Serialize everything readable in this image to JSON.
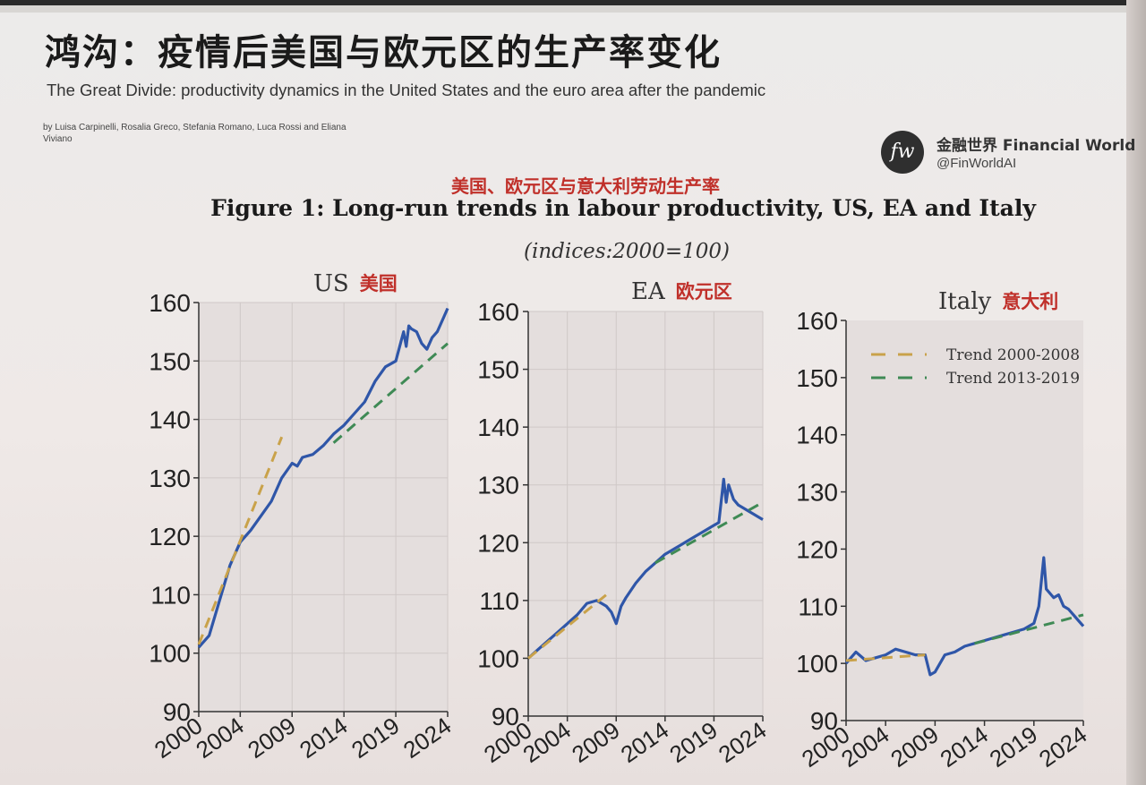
{
  "header": {
    "title_cn": "鸿沟：疫情后美国与欧元区的生产率变化",
    "title_en": "The Great Divide: productivity dynamics in the United States and the euro area after the pandemic",
    "authors": "by Luisa Carpinelli, Rosalia Greco, Stefania Romano, Luca Rossi and Eliana Viviano"
  },
  "brand": {
    "logo_text": "fw",
    "name": "金融世界 Financial World",
    "handle": "@FinWorldAI"
  },
  "figure": {
    "title_cn": "美国、欧元区与意大利劳动生产率",
    "title": "Figure 1: Long-run trends in labour productivity, US, EA and Italy",
    "subtitle": "(indices:2000=100)"
  },
  "colors": {
    "actual": "#2f56a8",
    "trend_2000_2008": "#c9a24a",
    "trend_2013_2019": "#3f8a55",
    "plot_bg": "#e4dedd",
    "title_red": "#c0302a"
  },
  "chart_data": [
    {
      "type": "line",
      "title": "US",
      "title_cn": "美国",
      "ylim": [
        90,
        160
      ],
      "xlim": [
        2000,
        2024
      ],
      "yticks": [
        90,
        100,
        110,
        120,
        130,
        140,
        150,
        160
      ],
      "xticks": [
        "2000",
        "2004",
        "2009",
        "2014",
        "2019",
        "2024"
      ],
      "grid": true,
      "series": [
        {
          "role": "actual",
          "x": [
            2000,
            2001,
            2002,
            2003,
            2004,
            2005,
            2006,
            2007,
            2008,
            2009,
            2009.5,
            2010,
            2011,
            2012,
            2013,
            2014,
            2015,
            2016,
            2017,
            2018,
            2019,
            2019.75,
            2020,
            2020.25,
            2020.5,
            2021,
            2021.5,
            2022,
            2022.5,
            2023,
            2023.5,
            2024
          ],
          "values": [
            101,
            103,
            109,
            115,
            119,
            121,
            123.5,
            126,
            130,
            132.5,
            132,
            133.5,
            134,
            135.5,
            137.5,
            139,
            141,
            143,
            146.5,
            149,
            150,
            155,
            152.5,
            156,
            155.5,
            155,
            153,
            152,
            154,
            155,
            157,
            159
          ]
        },
        {
          "name": "Trend 2000-2008",
          "x": [
            2000,
            2008
          ],
          "values": [
            101.5,
            137
          ]
        },
        {
          "name": "Trend 2013-2019",
          "x": [
            2013,
            2024
          ],
          "values": [
            136,
            153
          ]
        }
      ]
    },
    {
      "type": "line",
      "title": "EA",
      "title_cn": "欧元区",
      "ylim": [
        90,
        160
      ],
      "xlim": [
        2000,
        2024
      ],
      "yticks": [
        90,
        100,
        110,
        120,
        130,
        140,
        150,
        160
      ],
      "xticks": [
        "2000",
        "2004",
        "2009",
        "2014",
        "2019",
        "2024"
      ],
      "grid": true,
      "series": [
        {
          "role": "actual",
          "x": [
            2000,
            2001,
            2002,
            2003,
            2004,
            2005,
            2006,
            2007,
            2008,
            2008.5,
            2009,
            2009.5,
            2010,
            2011,
            2012,
            2013,
            2014,
            2015,
            2016,
            2017,
            2018,
            2019,
            2019.5,
            2020,
            2020.25,
            2020.5,
            2021,
            2021.5,
            2022,
            2022.5,
            2023,
            2023.5,
            2024
          ],
          "values": [
            100,
            101.5,
            103,
            104.5,
            106,
            107.5,
            109.5,
            110,
            109,
            108,
            106,
            109,
            110.5,
            113,
            115,
            116.5,
            118,
            119,
            120,
            121,
            122,
            123,
            123.5,
            131,
            127,
            130,
            127.5,
            126.5,
            126,
            125.5,
            125,
            124.5,
            124
          ]
        },
        {
          "name": "Trend 2000-2008",
          "x": [
            2000,
            2008
          ],
          "values": [
            100,
            111
          ]
        },
        {
          "name": "Trend 2013-2019",
          "x": [
            2013,
            2024
          ],
          "values": [
            116.5,
            127
          ]
        }
      ]
    },
    {
      "type": "line",
      "title": "Italy",
      "title_cn": "意大利",
      "ylim": [
        90,
        160
      ],
      "xlim": [
        2000,
        2024
      ],
      "yticks": [
        90,
        100,
        110,
        120,
        130,
        140,
        150,
        160
      ],
      "xticks": [
        "2000",
        "2004",
        "2009",
        "2014",
        "2019",
        "2024"
      ],
      "grid": false,
      "legend": "top-left",
      "series": [
        {
          "role": "actual",
          "x": [
            2000,
            2001,
            2002,
            2003,
            2004,
            2005,
            2006,
            2007,
            2008,
            2008.5,
            2009,
            2010,
            2011,
            2012,
            2013,
            2014,
            2015,
            2016,
            2017,
            2018,
            2019,
            2019.5,
            2020,
            2020.25,
            2020.75,
            2021,
            2021.5,
            2022,
            2022.5,
            2023,
            2023.5,
            2024
          ],
          "values": [
            100,
            102,
            100.5,
            101,
            101.5,
            102.5,
            102,
            101.5,
            101.5,
            98,
            98.5,
            101.5,
            102,
            103,
            103.5,
            104,
            104.5,
            105,
            105.5,
            106,
            107,
            110,
            118.5,
            113,
            112,
            111.5,
            112,
            110,
            109.5,
            108.5,
            107.5,
            106.5
          ]
        },
        {
          "name": "Trend 2000-2008",
          "x": [
            2000,
            2008
          ],
          "values": [
            100.5,
            101.5
          ]
        },
        {
          "name": "Trend 2013-2019",
          "x": [
            2013,
            2024
          ],
          "values": [
            103.5,
            108.5
          ]
        }
      ]
    }
  ]
}
